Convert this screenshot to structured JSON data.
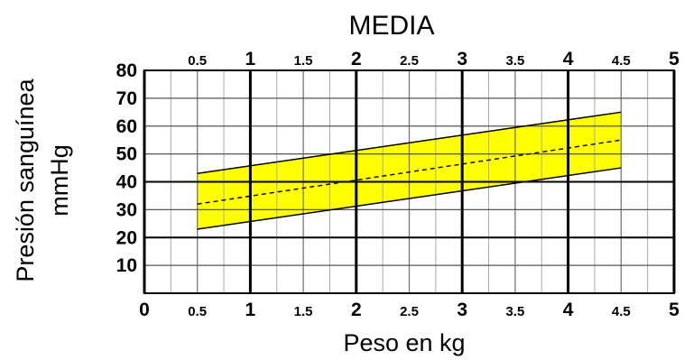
{
  "chart_data": {
    "type": "area",
    "title": "MEDIA",
    "xlabel": "Peso en kg",
    "ylabel_line1": "Presión sanguínea",
    "ylabel_line2": "mmHg",
    "xlim": [
      0,
      5
    ],
    "ylim": [
      0,
      80
    ],
    "x_ticks": [
      "0",
      "0.5",
      "1",
      "1.5",
      "2",
      "2.5",
      "3",
      "3.5",
      "4",
      "4.5",
      "5"
    ],
    "x_ticks_top": [
      "0.5",
      "1",
      "1.5",
      "2",
      "2.5",
      "3",
      "3.5",
      "4",
      "4.5",
      "5"
    ],
    "y_ticks": [
      "10",
      "20",
      "30",
      "40",
      "50",
      "60",
      "70",
      "80"
    ],
    "grid": true,
    "band": {
      "x": [
        0.5,
        4.5
      ],
      "upper": [
        43,
        65
      ],
      "lower": [
        23,
        45
      ],
      "color": "#ffff00"
    },
    "series": [
      {
        "x": [
          0.5,
          4.5
        ],
        "values": [
          32,
          55
        ],
        "style": "dashed"
      }
    ]
  }
}
